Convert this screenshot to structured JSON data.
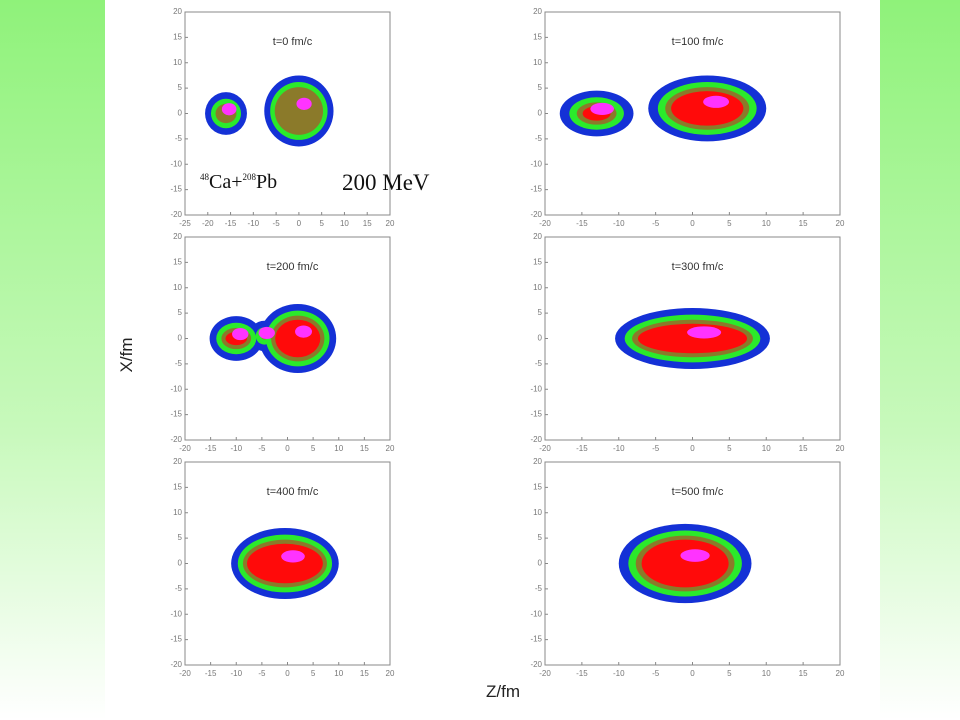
{
  "panels": [
    {
      "title": "t=0 fm/c",
      "xticks": [
        -25,
        -20,
        -15,
        -10,
        -5,
        0,
        5,
        10,
        15,
        20
      ],
      "yticks": [
        20,
        15,
        10,
        5,
        0,
        -5,
        -10,
        -15,
        -20
      ]
    },
    {
      "title": "t=100 fm/c",
      "xticks": [
        -20,
        -15,
        -10,
        -5,
        0,
        5,
        10,
        15,
        20
      ],
      "yticks": [
        20,
        15,
        10,
        5,
        0,
        -5,
        -10,
        -15,
        -20
      ]
    },
    {
      "title": "t=200 fm/c",
      "xticks": [
        -20,
        -15,
        -10,
        -5,
        0,
        5,
        10,
        15,
        20
      ],
      "yticks": [
        20,
        15,
        10,
        5,
        0,
        -5,
        -10,
        -15,
        -20
      ]
    },
    {
      "title": "t=300 fm/c",
      "xticks": [
        -20,
        -15,
        -10,
        -5,
        0,
        5,
        10,
        15,
        20
      ],
      "yticks": [
        20,
        15,
        10,
        5,
        0,
        -5,
        -10,
        -15,
        -20
      ]
    },
    {
      "title": "t=400 fm/c",
      "xticks": [
        -20,
        -15,
        -10,
        -5,
        0,
        5,
        10,
        15,
        20
      ],
      "yticks": [
        20,
        15,
        10,
        5,
        0,
        -5,
        -10,
        -15,
        -20
      ]
    },
    {
      "title": "t=500 fm/c",
      "xticks": [
        -20,
        -15,
        -10,
        -5,
        0,
        5,
        10,
        15,
        20
      ],
      "yticks": [
        20,
        15,
        10,
        5,
        0,
        -5,
        -10,
        -15,
        -20
      ]
    }
  ],
  "annotations": {
    "reaction": {
      "mass1": "48",
      "element1": "Ca+",
      "mass2": "208",
      "element2": "Pb"
    },
    "energy": "200 MeV"
  },
  "axes": {
    "y_label": "X/fm",
    "x_label": "Z/fm"
  }
}
